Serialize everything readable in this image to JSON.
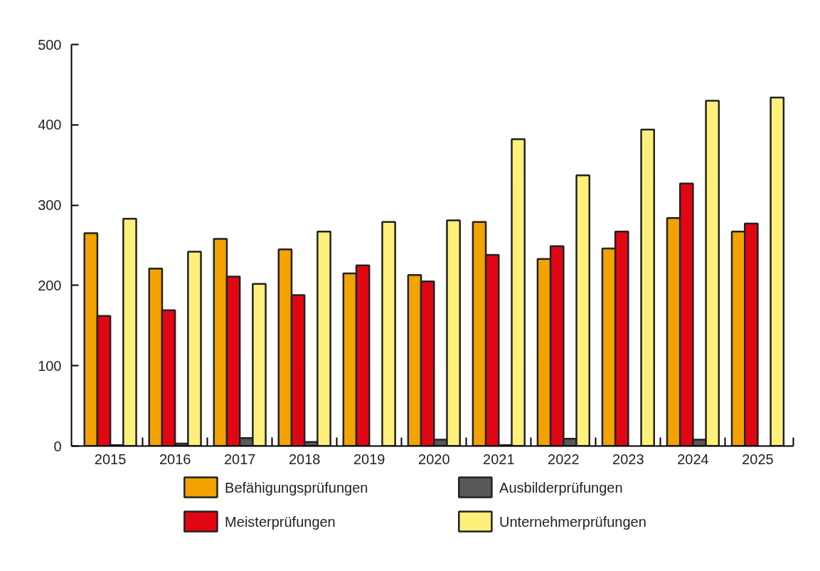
{
  "chart_data": {
    "type": "bar",
    "categories": [
      "2015",
      "2016",
      "2017",
      "2018",
      "2019",
      "2020",
      "2021",
      "2022",
      "2023",
      "2024",
      "2025"
    ],
    "series": [
      {
        "name": "Befähigungsprüfungen",
        "color": "#f2a300",
        "values": [
          265,
          221,
          258,
          245,
          215,
          213,
          279,
          233,
          246,
          284,
          267
        ]
      },
      {
        "name": "Meisterprüfungen",
        "color": "#e20613",
        "values": [
          162,
          169,
          211,
          188,
          225,
          205,
          238,
          249,
          267,
          327,
          277
        ]
      },
      {
        "name": "Ausbilderprüfungen",
        "color": "#58585a",
        "values": [
          1,
          3,
          10,
          5,
          0,
          8,
          1,
          9,
          0,
          8,
          0
        ]
      },
      {
        "name": "Unternehmerprüfungen",
        "color": "#fff07a",
        "values": [
          283,
          242,
          202,
          267,
          279,
          281,
          382,
          337,
          394,
          430,
          434
        ]
      }
    ],
    "ylim": [
      0,
      500
    ],
    "yticks": [
      0,
      100,
      200,
      300,
      400,
      500
    ],
    "grid": false,
    "legend": "bottom"
  }
}
